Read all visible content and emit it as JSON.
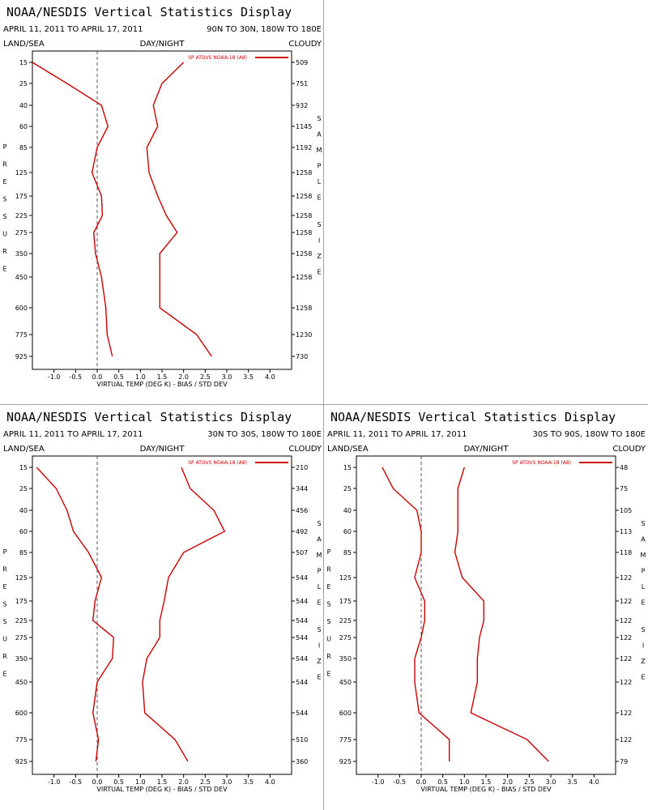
{
  "chart_data": [
    {
      "type": "line",
      "title": "NOAA/NESDIS Vertical Statistics Display",
      "date_range": "APRIL 11, 2011 TO APRIL 17, 2011",
      "region": "90N TO 30N, 180W TO 180E",
      "left_header": "LAND/SEA",
      "center_header": "DAY/NIGHT",
      "right_header": "CLOUDY",
      "xlabel": "VIRTUAL TEMP (DEG K) - BIAS / STD DEV",
      "ylabel": "PRESSURE",
      "right_axis_label": "SAMPLE SIZE",
      "xlim": [
        -1.5,
        4.5
      ],
      "x_ticks": [
        "-1.0",
        "-0.5",
        "0.0",
        "0.5",
        "1.0",
        "1.5",
        "2.0",
        "2.5",
        "3.0",
        "3.5",
        "4.0"
      ],
      "pressure_levels": [
        "15",
        "25",
        "40",
        "60",
        "85",
        "125",
        "175",
        "225",
        "275",
        "350",
        "450",
        "600",
        "775",
        "925"
      ],
      "sample_sizes": [
        "509",
        "751",
        "932",
        "1145",
        "1192",
        "1258",
        "1258",
        "1258",
        "1258",
        "1258",
        "1258",
        "1258",
        "1230",
        "730"
      ],
      "series": [
        {
          "name": "SP ATOVS NOAA-18 (A8)",
          "kind": "bias",
          "values": [
            -1.5,
            -0.7,
            0.1,
            0.25,
            0.0,
            -0.12,
            0.1,
            0.12,
            -0.08,
            -0.04,
            0.1,
            0.2,
            0.23,
            0.35
          ]
        },
        {
          "kind": "std_dev",
          "values": [
            2.0,
            1.5,
            1.3,
            1.4,
            1.15,
            1.2,
            1.4,
            1.6,
            1.85,
            1.45,
            1.45,
            1.45,
            2.3,
            2.65
          ]
        }
      ]
    },
    {
      "type": "line",
      "title": "NOAA/NESDIS Vertical Statistics Display",
      "date_range": "APRIL 11, 2011 TO APRIL 17, 2011",
      "region": "30N TO 30S, 180W TO 180E",
      "left_header": "LAND/SEA",
      "center_header": "DAY/NIGHT",
      "right_header": "CLOUDY",
      "xlabel": "VIRTUAL TEMP (DEG K) - BIAS / STD DEV",
      "ylabel": "PRESSURE",
      "right_axis_label": "SAMPLE SIZE",
      "xlim": [
        -1.5,
        4.5
      ],
      "x_ticks": [
        "-1.0",
        "-0.5",
        "0.0",
        "0.5",
        "1.0",
        "1.5",
        "2.0",
        "2.5",
        "3.0",
        "3.5",
        "4.0"
      ],
      "pressure_levels": [
        "15",
        "25",
        "40",
        "60",
        "85",
        "125",
        "175",
        "225",
        "275",
        "350",
        "450",
        "600",
        "775",
        "925"
      ],
      "sample_sizes": [
        "210",
        "344",
        "456",
        "492",
        "507",
        "544",
        "544",
        "544",
        "544",
        "544",
        "544",
        "544",
        "510",
        "360"
      ],
      "series": [
        {
          "name": "SP ATOVS NOAA-18 (A8)",
          "kind": "bias",
          "values": [
            -1.4,
            -0.95,
            -0.7,
            -0.55,
            -0.2,
            0.1,
            -0.05,
            -0.1,
            0.38,
            0.35,
            0.0,
            -0.1,
            0.03,
            -0.03
          ]
        },
        {
          "kind": "std_dev",
          "values": [
            1.95,
            2.15,
            2.7,
            2.95,
            2.0,
            1.65,
            1.55,
            1.45,
            1.45,
            1.15,
            1.05,
            1.1,
            1.8,
            2.1
          ]
        }
      ]
    },
    {
      "type": "line",
      "title": "NOAA/NESDIS Vertical Statistics Display",
      "date_range": "APRIL 11, 2011 TO APRIL 17, 2011",
      "region": "30S TO 90S, 180W TO 180E",
      "left_header": "LAND/SEA",
      "center_header": "DAY/NIGHT",
      "right_header": "CLOUDY",
      "xlabel": "VIRTUAL TEMP (DEG K) - BIAS / STD DEV",
      "ylabel": "PRESSURE",
      "right_axis_label": "SAMPLE SIZE",
      "xlim": [
        -1.5,
        4.5
      ],
      "x_ticks": [
        "-1.0",
        "-0.5",
        "0.0",
        "0.5",
        "1.0",
        "1.5",
        "2.0",
        "2.5",
        "3.0",
        "3.5",
        "4.0"
      ],
      "pressure_levels": [
        "15",
        "25",
        "40",
        "60",
        "85",
        "125",
        "175",
        "225",
        "275",
        "350",
        "450",
        "600",
        "775",
        "925"
      ],
      "sample_sizes": [
        "48",
        "75",
        "105",
        "113",
        "118",
        "122",
        "122",
        "122",
        "122",
        "122",
        "122",
        "122",
        "122",
        "79"
      ],
      "series": [
        {
          "name": "SP ATOVS NOAA-18 (A8)",
          "kind": "bias",
          "values": [
            -0.9,
            -0.65,
            -0.1,
            0.0,
            0.0,
            -0.15,
            0.08,
            0.08,
            0.0,
            -0.15,
            -0.15,
            -0.05,
            0.65,
            0.65
          ]
        },
        {
          "kind": "std_dev",
          "values": [
            1.0,
            0.85,
            0.85,
            0.85,
            0.78,
            0.95,
            1.45,
            1.45,
            1.35,
            1.3,
            1.3,
            1.15,
            2.45,
            2.95
          ]
        }
      ]
    }
  ]
}
